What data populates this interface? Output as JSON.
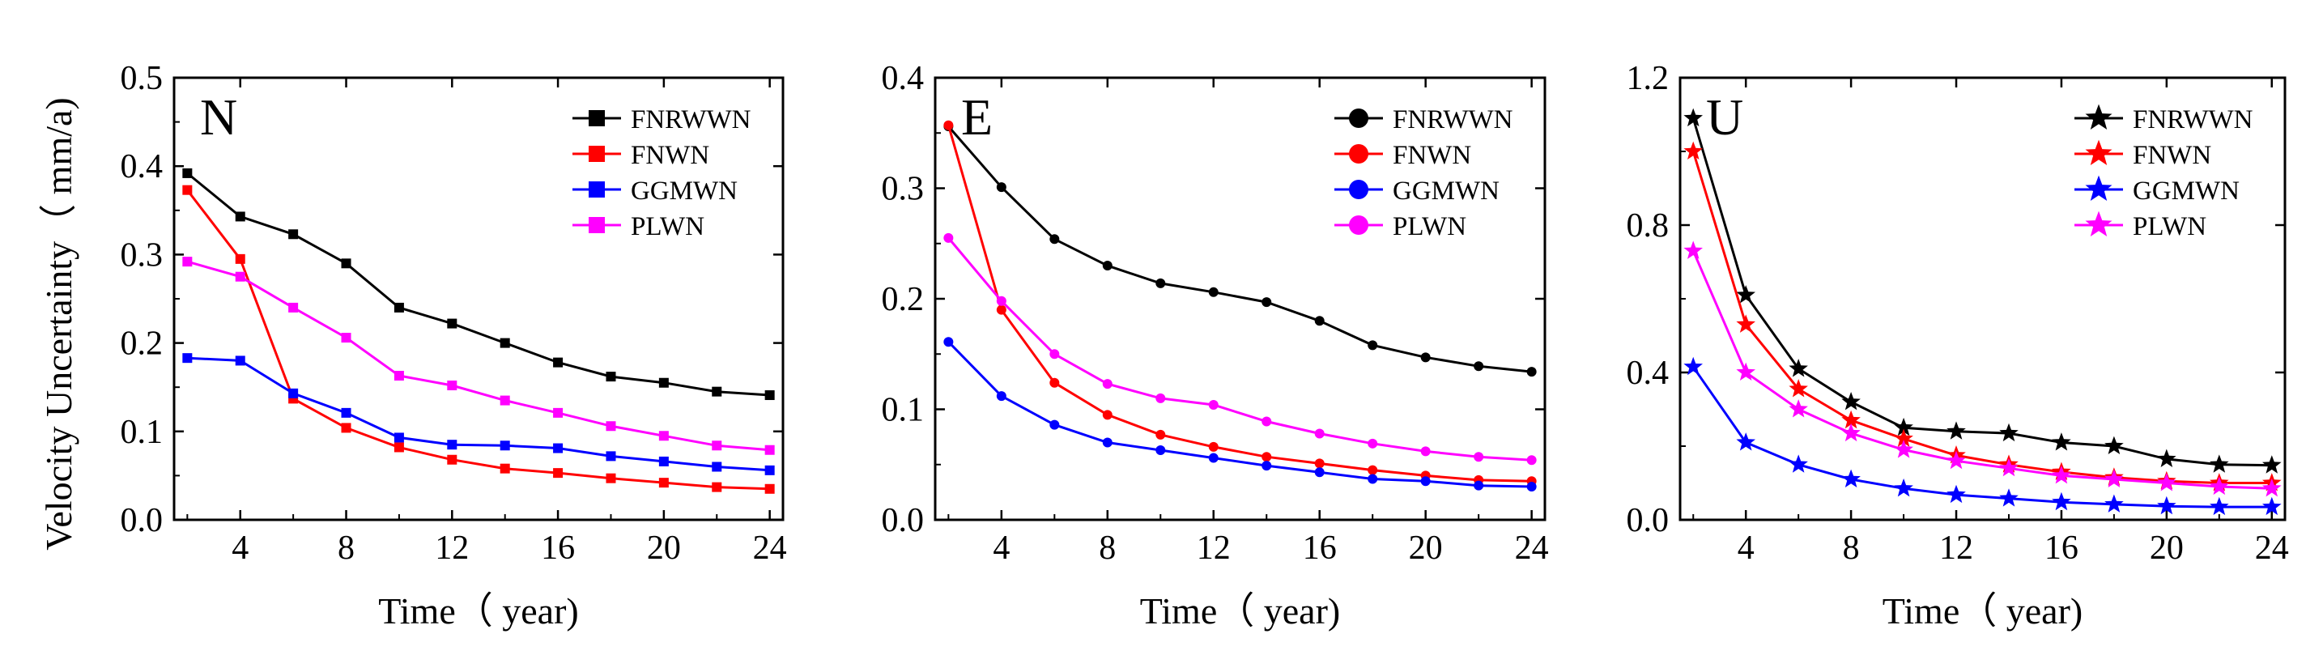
{
  "figure": {
    "ylabel": "Velocity Uncertainty（ mm/a)",
    "xlabel": "Time（ year)"
  },
  "chart_data": [
    {
      "type": "line",
      "panel_label": "N",
      "xlabel": "Time（ year)",
      "ylabel": "Velocity Uncertainty（ mm/a)",
      "xlim": [
        1.5,
        24.5
      ],
      "ylim": [
        0,
        0.5
      ],
      "xticks": [
        4,
        8,
        12,
        16,
        20,
        24
      ],
      "yticks": [
        0.0,
        0.1,
        0.2,
        0.3,
        0.4,
        0.5
      ],
      "ytick_labels": [
        "0.0",
        "0.1",
        "0.2",
        "0.3",
        "0.4",
        "0.5"
      ],
      "grid": false,
      "legend_position": "top-right",
      "marker": "square",
      "x": [
        2,
        4,
        6,
        8,
        10,
        12,
        14,
        16,
        18,
        20,
        22,
        24
      ],
      "series": [
        {
          "name": "FNRWWN",
          "color": "#000000",
          "values": [
            0.392,
            0.343,
            0.323,
            0.29,
            0.24,
            0.222,
            0.2,
            0.178,
            0.162,
            0.155,
            0.145,
            0.141
          ]
        },
        {
          "name": "FNWN",
          "color": "#ff0000",
          "values": [
            0.373,
            0.295,
            0.137,
            0.104,
            0.082,
            0.068,
            0.058,
            0.053,
            0.047,
            0.042,
            0.037,
            0.035
          ]
        },
        {
          "name": "GGMWN",
          "color": "#0000ff",
          "values": [
            0.183,
            0.18,
            0.143,
            0.121,
            0.093,
            0.085,
            0.084,
            0.081,
            0.072,
            0.066,
            0.06,
            0.056
          ]
        },
        {
          "name": "PLWN",
          "color": "#ff00ff",
          "values": [
            0.292,
            0.275,
            0.24,
            0.206,
            0.163,
            0.152,
            0.135,
            0.121,
            0.106,
            0.095,
            0.084,
            0.079
          ]
        }
      ]
    },
    {
      "type": "line",
      "panel_label": "E",
      "xlabel": "Time（ year)",
      "ylabel": "",
      "xlim": [
        1.5,
        24.5
      ],
      "ylim": [
        0,
        0.4
      ],
      "xticks": [
        4,
        8,
        12,
        16,
        20,
        24
      ],
      "yticks": [
        0.0,
        0.1,
        0.2,
        0.3,
        0.4
      ],
      "ytick_labels": [
        "0.0",
        "0.1",
        "0.2",
        "0.3",
        "0.4"
      ],
      "grid": false,
      "legend_position": "top-right",
      "marker": "circle",
      "x": [
        2,
        4,
        6,
        8,
        10,
        12,
        14,
        16,
        18,
        20,
        22,
        24
      ],
      "series": [
        {
          "name": "FNRWWN",
          "color": "#000000",
          "values": [
            0.356,
            0.301,
            0.254,
            0.23,
            0.214,
            0.206,
            0.197,
            0.18,
            0.158,
            0.147,
            0.139,
            0.134
          ]
        },
        {
          "name": "FNWN",
          "color": "#ff0000",
          "values": [
            0.357,
            0.19,
            0.124,
            0.095,
            0.077,
            0.066,
            0.057,
            0.051,
            0.045,
            0.04,
            0.036,
            0.035
          ]
        },
        {
          "name": "GGMWN",
          "color": "#0000ff",
          "values": [
            0.161,
            0.112,
            0.086,
            0.07,
            0.063,
            0.056,
            0.049,
            0.043,
            0.037,
            0.035,
            0.031,
            0.03
          ]
        },
        {
          "name": "PLWN",
          "color": "#ff00ff",
          "values": [
            0.255,
            0.198,
            0.15,
            0.123,
            0.11,
            0.104,
            0.089,
            0.078,
            0.069,
            0.062,
            0.057,
            0.054
          ]
        }
      ]
    },
    {
      "type": "line",
      "panel_label": "U",
      "xlabel": "Time（ year)",
      "ylabel": "",
      "xlim": [
        1.5,
        24.5
      ],
      "ylim": [
        0,
        1.2
      ],
      "xticks": [
        4,
        8,
        12,
        16,
        20,
        24
      ],
      "yticks": [
        0.0,
        0.4,
        0.8,
        1.2
      ],
      "ytick_labels": [
        "0.0",
        "0.4",
        "0.8",
        "1.2"
      ],
      "grid": false,
      "legend_position": "top-right",
      "marker": "star",
      "x": [
        2,
        4,
        6,
        8,
        10,
        12,
        14,
        16,
        18,
        20,
        22,
        24
      ],
      "series": [
        {
          "name": "FNRWWN",
          "color": "#000000",
          "values": [
            1.09,
            0.61,
            0.41,
            0.32,
            0.25,
            0.24,
            0.235,
            0.21,
            0.2,
            0.165,
            0.15,
            0.148
          ]
        },
        {
          "name": "FNWN",
          "color": "#ff0000",
          "values": [
            1.0,
            0.53,
            0.355,
            0.27,
            0.22,
            0.175,
            0.15,
            0.13,
            0.115,
            0.105,
            0.1,
            0.1
          ]
        },
        {
          "name": "GGMWN",
          "color": "#0000ff",
          "values": [
            0.415,
            0.21,
            0.15,
            0.11,
            0.085,
            0.068,
            0.058,
            0.048,
            0.042,
            0.037,
            0.035,
            0.035
          ]
        },
        {
          "name": "PLWN",
          "color": "#ff00ff",
          "values": [
            0.73,
            0.4,
            0.3,
            0.235,
            0.19,
            0.16,
            0.14,
            0.12,
            0.11,
            0.1,
            0.09,
            0.085
          ]
        }
      ]
    }
  ]
}
